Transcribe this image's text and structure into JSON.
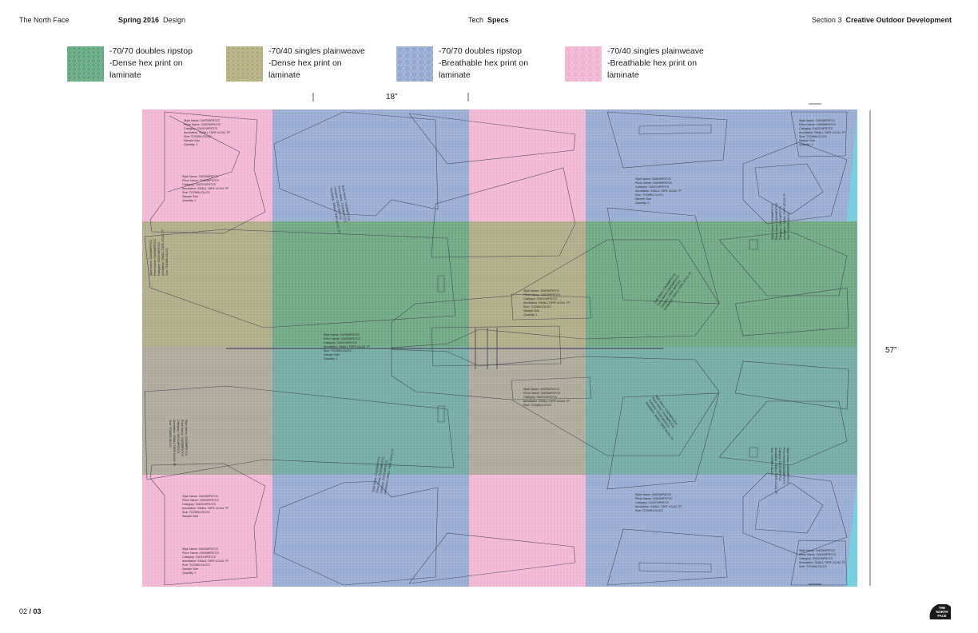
{
  "header": {
    "brand": "The North Face",
    "season": "Spring 2016",
    "season_suffix": "Design",
    "tech": "Tech",
    "tech_bold": "Specs",
    "section_prefix": "Section 3",
    "section_title": "Creative Outdoor Development"
  },
  "legend": [
    {
      "line1": "-70/70 doubles ripstop",
      "line2": "-Dense hex print on",
      "line3": "laminate",
      "color": "#5fa57d"
    },
    {
      "line1": "-70/40 singles plainweave",
      "line2": "-Dense hex print on",
      "line3": "laminate",
      "color": "#b0ac7c"
    },
    {
      "line1": "-70/70 doubles ripstop",
      "line2": "-Breathable hex print on",
      "line3": "laminate",
      "color": "#93a9cf"
    },
    {
      "line1": "-70/40 singles plainweave",
      "line2": "-Breathable hex print on",
      "line3": "laminate",
      "color": "#f1b3d2"
    }
  ],
  "dimensions": {
    "width_label": "18”",
    "height_label": "57”"
  },
  "marker": {
    "colors": {
      "pink": "#f1b3d2",
      "blue": "#93a9cf",
      "olive": "#aca884",
      "green": "#6aa47c",
      "grey": "#aaa596",
      "teal": "#6fa7a1",
      "cyan": "#78d0de",
      "outline": "#3c3c4a"
    },
    "piece_labels": {
      "style": "Style Name: CW20MP57CS",
      "piece": "Piece Name: CW20MP57CS",
      "category": "Category: CW20 MP57CS",
      "annotation": "Annotation: SMALL TAPE UC/A1 7P",
      "size": "Size: TOOWN-OL/CS",
      "sample": "Sample Size",
      "quantity": "Quantity: 1"
    }
  },
  "footer": {
    "page_current": "02",
    "page_sep": " / ",
    "page_total": "03",
    "logo_line1": "THE",
    "logo_line2": "NORTH",
    "logo_line3": "FACE"
  }
}
